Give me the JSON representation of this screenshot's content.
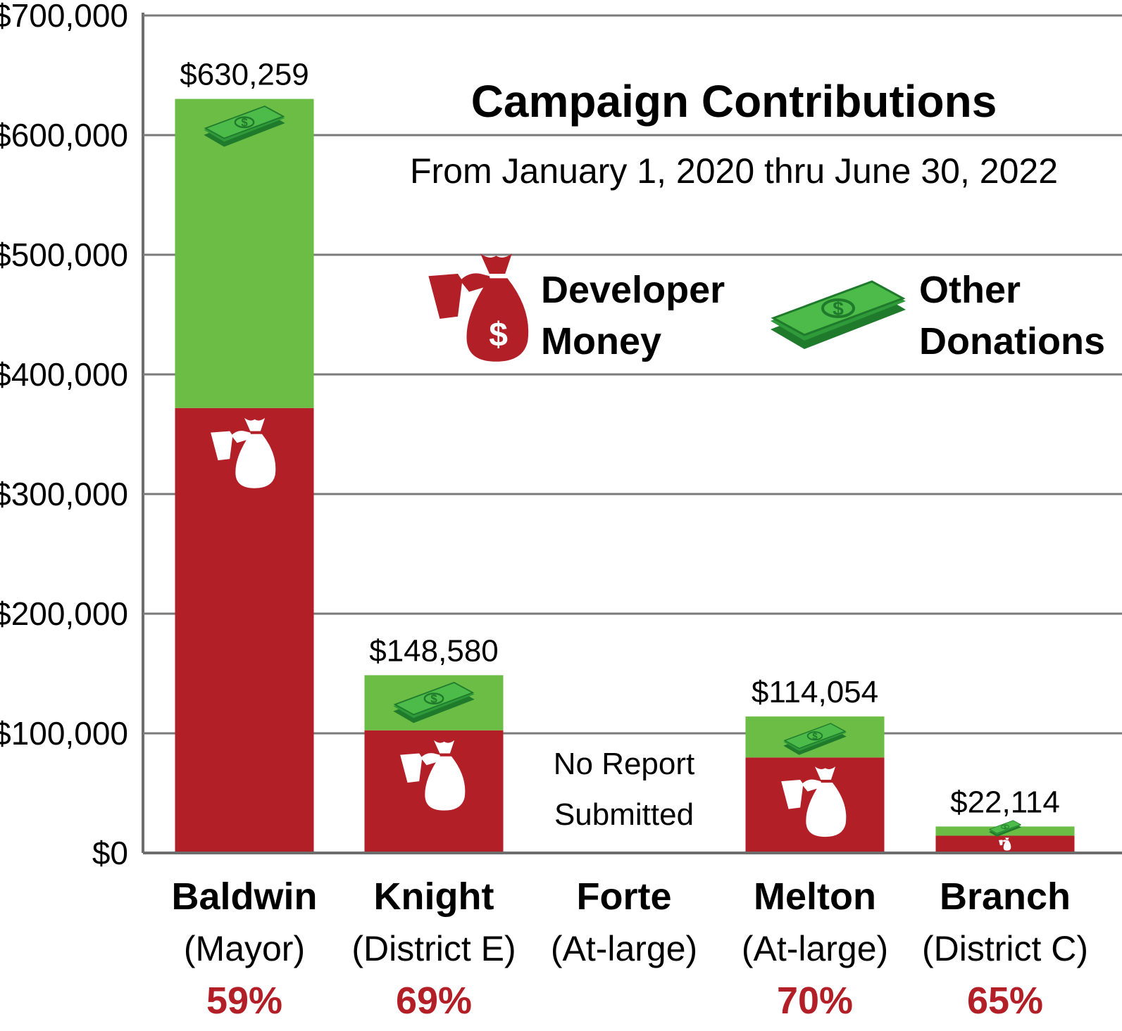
{
  "chart_data": {
    "type": "bar",
    "stacked": true,
    "title": "Campaign Contributions",
    "subtitle": "From January 1, 2020 thru June 30, 2022",
    "ylim": [
      0,
      700000
    ],
    "y_ticks": [
      0,
      100000,
      200000,
      300000,
      400000,
      500000,
      600000,
      700000
    ],
    "y_tick_labels": [
      "$0",
      "$100,000",
      "$200,000",
      "$300,000",
      "$400,000",
      "$500,000",
      "$600,000",
      "$700,000"
    ],
    "grid": true,
    "legend_placement": "top-right",
    "categories": [
      "Baldwin",
      "Knight",
      "Forte",
      "Melton",
      "Branch"
    ],
    "roles": [
      "(Mayor)",
      "(District E)",
      "(At-large)",
      "(At-large)",
      "(District C)"
    ],
    "percent_labels": [
      "59%",
      "69%",
      "",
      "70%",
      "65%"
    ],
    "percent_labels_2": [
      "",
      "",
      "",
      "",
      ""
    ],
    "total_labels": [
      "$630,259",
      "$148,580",
      "",
      "$114,054",
      "$22,114"
    ],
    "annotations": [
      {
        "category": "Forte",
        "lines": [
          "No Report",
          "Submitted"
        ]
      }
    ],
    "series": [
      {
        "name": "Developer Money",
        "values": [
          371900,
          102500,
          null,
          79800,
          14400
        ],
        "color": "#b31f27",
        "icon": "money-bag-icon"
      },
      {
        "name": "Other Donations",
        "values": [
          258359,
          46080,
          null,
          34254,
          7714
        ],
        "color": "#6bbd45",
        "icon": "cash-stack-icon"
      }
    ]
  },
  "legend": {
    "developer_line1": "Developer",
    "developer_line2": "Money",
    "other_line1": "Other",
    "other_line2": "Donations"
  }
}
